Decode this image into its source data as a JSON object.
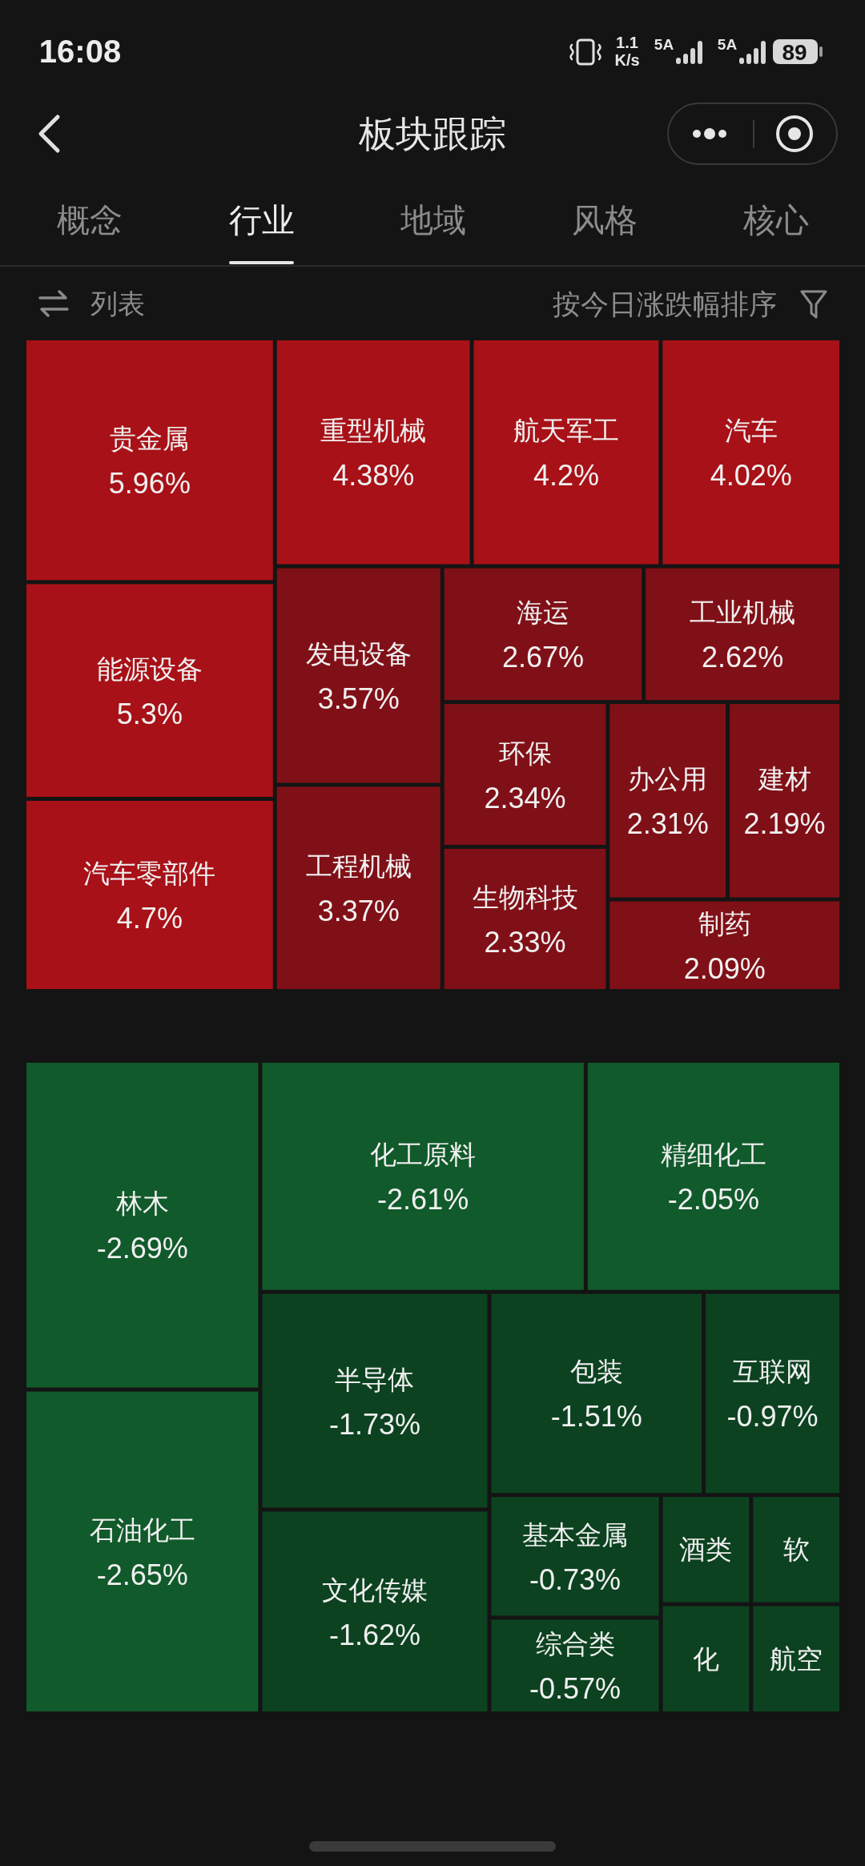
{
  "chart_data": [
    {
      "type": "other",
      "title": "板块跟踪",
      "annotations": [
        "16:08",
        "1.1",
        "K/s",
        "5A",
        "5A",
        "89",
        "概念",
        "行业",
        "地域",
        "风格",
        "核心",
        "列表",
        "按今日涨跌幅排序"
      ],
      "categories": [
        "贵金属",
        "能源设备",
        "汽车零部件",
        "重型机械",
        "航天军工",
        "汽车",
        "发电设备",
        "工程机械",
        "海运",
        "工业机械",
        "环保",
        "生物科技",
        "办公用",
        "建材",
        "制药"
      ],
      "values": [
        5.96,
        5.3,
        4.7,
        4.38,
        4.2,
        4.02,
        3.57,
        3.37,
        2.67,
        2.62,
        2.34,
        2.33,
        2.31,
        2.19,
        2.09
      ],
      "value_labels": [
        "5.96%",
        "5.3%",
        "4.7%",
        "4.38%",
        "4.2%",
        "4.02%",
        "3.57%",
        "3.37%",
        "2.67%",
        "2.62%",
        "2.34%",
        "2.33%",
        "2.31%",
        "2.19%",
        "2.09%"
      ],
      "colors": [
        "#a81117",
        "#a81117",
        "#a81117",
        "#a81117",
        "#a81117",
        "#a81117",
        "#801017",
        "#801017",
        "#801017",
        "#801017",
        "#801017",
        "#801017",
        "#801017",
        "#801017",
        "#801017"
      ]
    },
    {
      "type": "other",
      "categories": [
        "林木",
        "石油化工",
        "化工原料",
        "精细化工",
        "半导体",
        "文化传媒",
        "包装",
        "互联网",
        "基本金属",
        "综合类",
        "酒类",
        "软",
        "化",
        "航空"
      ],
      "values": [
        -2.69,
        -2.65,
        -2.61,
        -2.05,
        -1.73,
        -1.62,
        -1.51,
        -0.97,
        -0.73,
        -0.57,
        null,
        null,
        null,
        null
      ],
      "value_labels": [
        "-2.69%",
        "-2.65%",
        "-2.61%",
        "-2.05%",
        "-1.73%",
        "-1.62%",
        "-1.51%",
        "-0.97%",
        "-0.73%",
        "-0.57%",
        null,
        null,
        null,
        null
      ],
      "colors": [
        "#115a2b",
        "#115a2b",
        "#115a2b",
        "#115a2b",
        "#0c4220",
        "#0c4220",
        "#0c4220",
        "#0c4220",
        "#0c4220",
        "#0c4220",
        "#0c4220",
        "#0c4220",
        "#0c4220",
        "#0c4220"
      ]
    }
  ]
}
